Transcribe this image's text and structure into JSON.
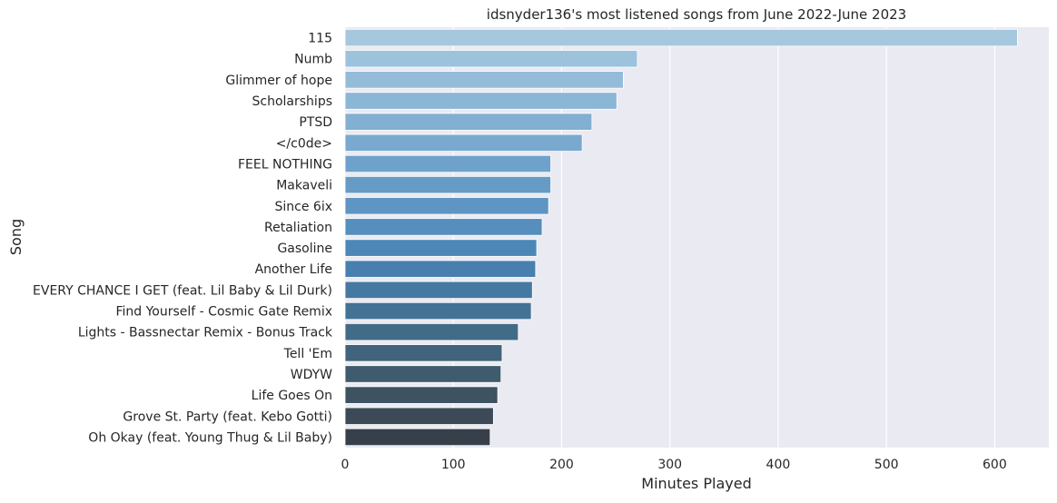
{
  "chart_data": {
    "type": "bar",
    "orientation": "horizontal",
    "title": "idsnyder136's most listened songs from June 2022-June 2023",
    "xlabel": "Minutes Played",
    "ylabel": "Song",
    "xlim": [
      0,
      650
    ],
    "xticks": [
      0,
      100,
      200,
      300,
      400,
      500,
      600
    ],
    "grid": true,
    "background": "#eaeaf2",
    "grid_color": "#ffffff",
    "palette": "Blues_d",
    "categories": [
      "115",
      "Numb",
      "Glimmer of hope",
      "Scholarships",
      "PTSD",
      "</c0de>",
      "FEEL NOTHING",
      "Makaveli",
      "Since 6ix",
      "Retaliation",
      "Gasoline",
      "Another Life",
      "EVERY CHANCE I GET (feat. Lil Baby & Lil Durk)",
      "Find Yourself - Cosmic Gate Remix",
      "Lights - Bassnectar Remix - Bonus Track",
      "Tell 'Em",
      "WDYW",
      "Life Goes On",
      "Grove St. Party (feat. Kebo Gotti)",
      "Oh Okay (feat. Young Thug & Lil Baby)"
    ],
    "values": [
      621,
      270,
      257,
      251,
      228,
      219,
      190,
      190,
      188,
      182,
      177,
      176,
      173,
      172,
      160,
      145,
      144,
      141,
      137,
      134
    ],
    "colors": [
      "#a6c8de",
      "#9dc2dc",
      "#94bcd9",
      "#8bb6d6",
      "#82afd2",
      "#79a9cf",
      "#6fa2cb",
      "#669bc6",
      "#5e95c2",
      "#568ebe",
      "#4c87b8",
      "#4780ae",
      "#4579a2",
      "#447295",
      "#426b88",
      "#41637b",
      "#3f5b6e",
      "#3d5362",
      "#3b4a56",
      "#37404a"
    ]
  }
}
